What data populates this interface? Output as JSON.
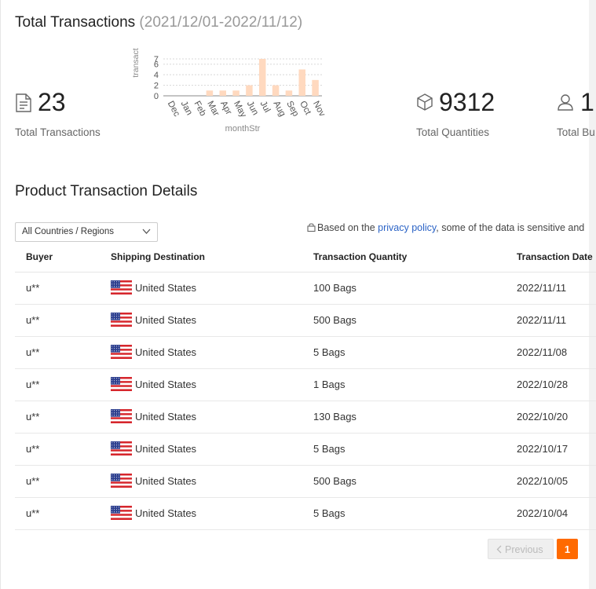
{
  "header": {
    "title": "Total Transactions",
    "date_range": "(2021/12/01-2022/11/12)"
  },
  "stats": {
    "transactions": {
      "value": "23",
      "label": "Total Transactions"
    },
    "quantities": {
      "value": "9312",
      "label": "Total Quantities"
    },
    "buyers": {
      "value": "1",
      "label": "Total Bu"
    }
  },
  "chart_data": {
    "type": "bar",
    "categories": [
      "Dec",
      "Jan",
      "Feb",
      "Mar",
      "Apr",
      "May",
      "Jun",
      "Jul",
      "Aug",
      "Sep",
      "Oct",
      "Nov"
    ],
    "values": [
      0,
      0,
      0,
      1,
      1,
      1,
      2,
      7,
      2,
      1,
      5,
      3
    ],
    "xlabel": "monthStr",
    "ylabel": "transact",
    "yticks": [
      "0",
      "2",
      "4",
      "6",
      "7"
    ],
    "ylim": [
      0,
      7
    ],
    "grid": true,
    "bar_color": "#ffd9bf"
  },
  "details": {
    "title": "Product Transaction Details",
    "filter_value": "All Countries / Regions",
    "privacy_prefix": "Based on the ",
    "privacy_link": "privacy policy",
    "privacy_suffix": ", some of the data is sensitive and"
  },
  "table": {
    "columns": [
      "Buyer",
      "Shipping Destination",
      "Transaction Quantity",
      "Transaction Date"
    ],
    "rows": [
      {
        "buyer": "u**",
        "country": "United States",
        "quantity": "100 Bags",
        "date": "2022/11/11"
      },
      {
        "buyer": "u**",
        "country": "United States",
        "quantity": "500 Bags",
        "date": "2022/11/11"
      },
      {
        "buyer": "u**",
        "country": "United States",
        "quantity": "5 Bags",
        "date": "2022/11/08"
      },
      {
        "buyer": "u**",
        "country": "United States",
        "quantity": "1 Bags",
        "date": "2022/10/28"
      },
      {
        "buyer": "u**",
        "country": "United States",
        "quantity": "130 Bags",
        "date": "2022/10/20"
      },
      {
        "buyer": "u**",
        "country": "United States",
        "quantity": "5 Bags",
        "date": "2022/10/17"
      },
      {
        "buyer": "u**",
        "country": "United States",
        "quantity": "500 Bags",
        "date": "2022/10/05"
      },
      {
        "buyer": "u**",
        "country": "United States",
        "quantity": "5 Bags",
        "date": "2022/10/04"
      }
    ]
  },
  "pagination": {
    "previous_label": "Previous",
    "current_page": "1"
  },
  "colors": {
    "accent": "#ff6a00",
    "link": "#2b63c6"
  },
  "icons": {
    "transactions": "document-icon",
    "quantities": "box-icon",
    "buyers": "user-icon",
    "privacy": "lock-icon",
    "filter": "chevron-down-icon",
    "previous": "chevron-left-icon",
    "flag": "us-flag-icon"
  }
}
